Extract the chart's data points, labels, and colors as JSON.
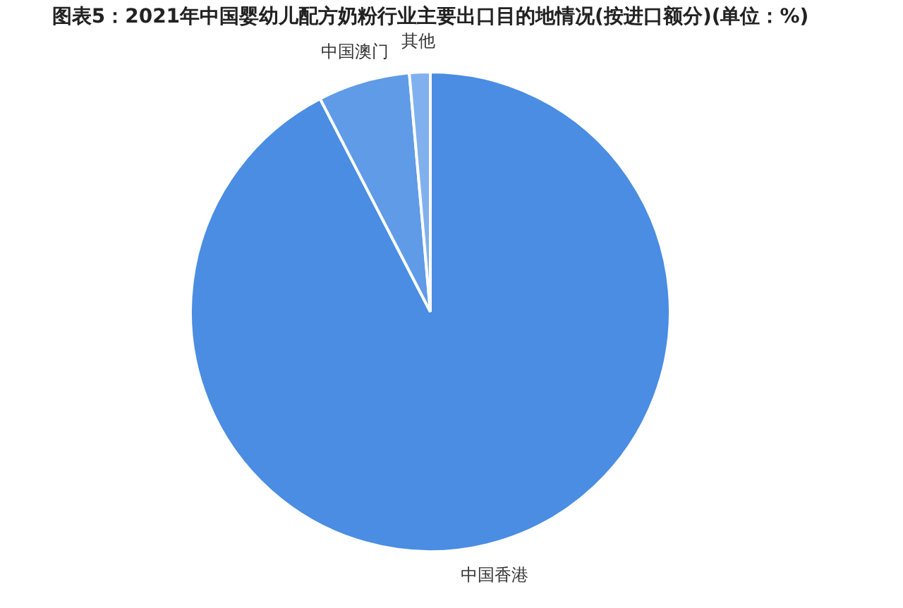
{
  "chart_data": {
    "type": "pie",
    "title": "图表5：2021年中国婴幼儿配方奶粉行业主要出口目的地情况(按进口额分)(单位：%)",
    "categories": [
      "中国香港",
      "中国澳门",
      "其他"
    ],
    "values": [
      92.4,
      6.2,
      1.4
    ],
    "colors": [
      "#4a8de2",
      "#5f9be6",
      "#80b1ee"
    ],
    "legend": false
  }
}
